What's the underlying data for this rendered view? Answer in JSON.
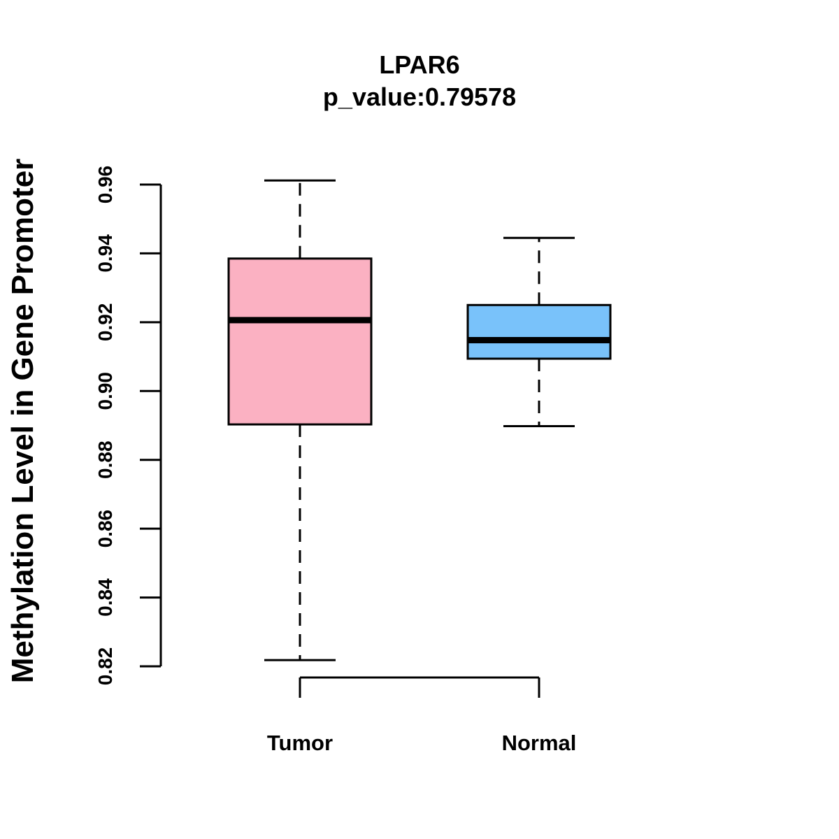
{
  "chart_data": {
    "type": "box",
    "title": "LPAR6",
    "subtitle": "p_value:0.79578",
    "xlabel": "",
    "ylabel": "Methylation Level in Gene Promoter",
    "ylim": [
      0.82,
      0.96
    ],
    "yticks": [
      "0.82",
      "0.84",
      "0.86",
      "0.88",
      "0.90",
      "0.92",
      "0.94",
      "0.96"
    ],
    "grid": false,
    "categories": [
      "Tumor",
      "Normal"
    ],
    "boxes": [
      {
        "name": "Tumor",
        "whisker_low": 0.8218,
        "q1": 0.8903,
        "median": 0.9206,
        "q3": 0.9385,
        "whisker_high": 0.9612,
        "color": "#FBB1C2"
      },
      {
        "name": "Normal",
        "whisker_low": 0.8898,
        "q1": 0.9094,
        "median": 0.9148,
        "q3": 0.925,
        "whisker_high": 0.9445,
        "color": "#79C2FA"
      }
    ]
  }
}
